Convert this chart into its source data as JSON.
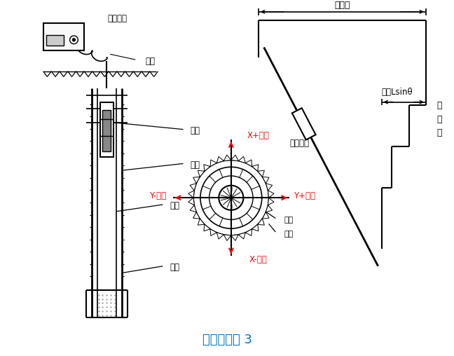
{
  "title": "测斜原理图 3",
  "title_color": "#0070C0",
  "title_fontsize": 13,
  "bg_color": "#ffffff",
  "line_color": "#000000",
  "red_color": "#FF0000",
  "labels": {
    "device": "测读设备",
    "cable": "电缆",
    "probe": "测头",
    "borehole": "钻孔",
    "guide_tube": "导管",
    "backfill": "回填",
    "guide_slot": "导槽",
    "guide_wheel": "导轮",
    "xplus": "X+方向",
    "xminus": "X-方向",
    "yplus": "Y+方向",
    "yminus": "Y-方向",
    "total_disp": "总位移",
    "disp_sintheta": "位移Lsinθ",
    "meas_interval": "测读间距",
    "baseline_1": "原",
    "baseline_2": "准",
    "baseline_3": "线"
  }
}
